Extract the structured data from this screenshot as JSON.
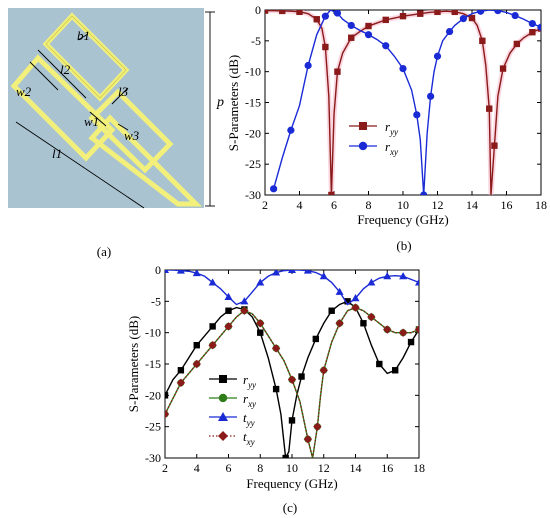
{
  "colors": {
    "background_panel": "#a9c3d1",
    "strip_yellow": "#f2f07a",
    "strip_edge": "#bfc04a",
    "dark_red": "#8b1a1a",
    "blue": "#1a2bd6",
    "green": "#2f7d1a",
    "pink_band": "#f6b6c8"
  },
  "panel_a": {
    "caption": "(a)",
    "labels": {
      "b1": "b1",
      "l2": "l2",
      "l3": "l3",
      "w2": "w2",
      "w1": "w1",
      "w3": "w3",
      "l1": "l1",
      "p": "p"
    }
  },
  "panel_b": {
    "caption": "(b)",
    "xlabel": "Frequency (GHz)",
    "ylabel": "S-Parameters (dB)",
    "xticks": [
      "2",
      "4",
      "6",
      "8",
      "10",
      "12",
      "14",
      "16",
      "18"
    ],
    "yticks": [
      "0",
      "-5",
      "-10",
      "-15",
      "-20",
      "-25",
      "-30"
    ],
    "legend": {
      "ryy": "r",
      "ryy_sub": "yy",
      "rxy": "r",
      "rxy_sub": "xy"
    }
  },
  "panel_c": {
    "caption": "(c)",
    "xlabel": "Frequency (GHz)",
    "ylabel": "S-Parameters (dB)",
    "xticks": [
      "2",
      "4",
      "6",
      "8",
      "10",
      "12",
      "14",
      "16",
      "18"
    ],
    "yticks": [
      "0",
      "-5",
      "-10",
      "-15",
      "-20",
      "-25",
      "-30"
    ],
    "legend": {
      "ryy": "r",
      "ryy_sub": "yy",
      "rxy": "r",
      "rxy_sub": "xy",
      "tyy": "t",
      "tyy_sub": "yy",
      "txy": "t",
      "txy_sub": "xy"
    }
  },
  "chart_data": [
    {
      "type": "line",
      "panel": "b",
      "xlim": [
        2,
        18
      ],
      "ylim": [
        -30,
        0
      ],
      "series": [
        {
          "name": "ryy",
          "color": "#8b1a1a",
          "marker": "square",
          "x": [
            2,
            2.5,
            3,
            3.5,
            4,
            4.5,
            5,
            5.3,
            5.5,
            5.7,
            5.85,
            6,
            6.2,
            6.5,
            7,
            7.5,
            8,
            8.5,
            9,
            9.5,
            10,
            10.5,
            11,
            11.5,
            12,
            12.5,
            13,
            13.5,
            14,
            14.3,
            14.6,
            14.8,
            15,
            15.1,
            15.3,
            15.5,
            15.8,
            16.2,
            16.6,
            17,
            17.5,
            18
          ],
          "y": [
            -0.1,
            -0.1,
            -0.15,
            -0.2,
            -0.3,
            -0.6,
            -1.5,
            -3,
            -6,
            -14,
            -30,
            -17,
            -10,
            -7,
            -4.5,
            -3.5,
            -2.6,
            -2.1,
            -1.6,
            -1.3,
            -1.0,
            -0.8,
            -0.6,
            -0.4,
            -0.3,
            -0.2,
            -0.3,
            -0.6,
            -1.3,
            -2.5,
            -5,
            -9,
            -16,
            -30,
            -22,
            -14,
            -9.5,
            -7,
            -5.5,
            -4.5,
            -3.6,
            -3
          ]
        },
        {
          "name": "rxy",
          "color": "#1a2bd6",
          "marker": "circle",
          "x": [
            2.5,
            3,
            3.5,
            4,
            4.5,
            5,
            5.5,
            5.8,
            6.2,
            6.5,
            7,
            7.5,
            8,
            8.5,
            9,
            9.5,
            10,
            10.5,
            10.8,
            11,
            11.2,
            11.4,
            11.6,
            11.8,
            12,
            12.3,
            12.7,
            13,
            13.5,
            14,
            14.5,
            15,
            15.5,
            16,
            16.5,
            17,
            17.5,
            18
          ],
          "y": [
            -29,
            -24,
            -19.5,
            -15.5,
            -9,
            -4,
            -1,
            0,
            -0.5,
            -1.5,
            -2.5,
            -3.3,
            -4,
            -4.8,
            -5.8,
            -7.5,
            -9.5,
            -13,
            -17,
            -21,
            -30,
            -20,
            -14,
            -10,
            -7.5,
            -5,
            -3.5,
            -2.5,
            -1.4,
            -0.6,
            -0.2,
            0,
            -0.1,
            -0.4,
            -0.9,
            -1.5,
            -2.2,
            -2.8
          ]
        }
      ]
    },
    {
      "type": "line",
      "panel": "c",
      "xlim": [
        2,
        18
      ],
      "ylim": [
        -30,
        0
      ],
      "series": [
        {
          "name": "ryy",
          "color": "#000000",
          "marker": "square",
          "x": [
            2,
            2.5,
            3,
            3.5,
            4,
            4.5,
            5,
            5.5,
            6,
            6.5,
            7,
            7.5,
            8,
            8.5,
            9,
            9.3,
            9.6,
            9.8,
            10,
            10.3,
            10.6,
            11,
            11.5,
            12,
            12.5,
            13,
            13.5,
            14,
            14.5,
            15,
            15.5,
            16,
            16.5,
            17,
            17.5,
            18
          ],
          "y": [
            -20,
            -17.5,
            -16,
            -14,
            -12,
            -10.5,
            -9,
            -7.5,
            -6.5,
            -6,
            -6.3,
            -7.5,
            -10,
            -14,
            -19,
            -23,
            -30,
            -29,
            -24,
            -20,
            -17,
            -14,
            -11,
            -8.5,
            -6.5,
            -5.5,
            -5,
            -6,
            -8.5,
            -12,
            -15,
            -16.5,
            -16,
            -14,
            -11.5,
            -9.5
          ]
        },
        {
          "name": "rxy",
          "color": "#2f7d1a",
          "marker": "circle",
          "x": [
            2,
            2.5,
            3,
            3.5,
            4,
            4.5,
            5,
            5.5,
            6,
            6.5,
            7,
            7.5,
            8,
            8.5,
            9,
            9.5,
            10,
            10.5,
            11,
            11.3,
            11.6,
            11.8,
            12,
            12.5,
            13,
            13.5,
            14,
            14.5,
            15,
            15.5,
            16,
            16.5,
            17,
            17.5,
            18
          ],
          "y": [
            -23,
            -20.5,
            -18,
            -16.5,
            -15,
            -13.5,
            -12,
            -10.5,
            -9,
            -7.5,
            -6.5,
            -7,
            -8.5,
            -10.5,
            -12.5,
            -14.5,
            -17.5,
            -21,
            -27,
            -30,
            -25,
            -20,
            -16,
            -11.5,
            -8.5,
            -6.5,
            -6,
            -6.5,
            -7.5,
            -8.5,
            -9.5,
            -10,
            -10,
            -10,
            -9.5
          ]
        },
        {
          "name": "tyy",
          "color": "#1a2bd6",
          "marker": "triangle",
          "x": [
            2,
            2.5,
            3,
            3.5,
            4,
            4.5,
            5,
            5.5,
            6,
            6.5,
            7,
            7.5,
            8,
            8.5,
            9,
            9.5,
            10,
            10.5,
            11,
            11.5,
            12,
            12.5,
            13,
            13.5,
            14,
            14.5,
            15,
            15.5,
            16,
            16.5,
            17,
            17.5,
            18
          ],
          "y": [
            0,
            0,
            -0.1,
            -0.2,
            -0.5,
            -1,
            -2,
            -3,
            -4.3,
            -5.5,
            -5,
            -3.5,
            -2,
            -1,
            -0.4,
            -0.1,
            0,
            0,
            -0.1,
            -0.4,
            -1,
            -2,
            -3.5,
            -5.5,
            -4.5,
            -3,
            -2,
            -1.3,
            -1,
            -0.9,
            -1,
            -1.5,
            -2
          ]
        },
        {
          "name": "txy",
          "color": "#8b1a1a",
          "marker": "diamond",
          "x": [
            2,
            2.5,
            3,
            3.5,
            4,
            4.5,
            5,
            5.5,
            6,
            6.5,
            7,
            7.5,
            8,
            8.5,
            9,
            9.5,
            10,
            10.5,
            11,
            11.3,
            11.6,
            11.8,
            12,
            12.5,
            13,
            13.5,
            14,
            14.5,
            15,
            15.5,
            16,
            16.5,
            17,
            17.5,
            18
          ],
          "y": [
            -23,
            -20.5,
            -18,
            -16.5,
            -15,
            -13.5,
            -12,
            -10.5,
            -9,
            -7.5,
            -6.5,
            -7,
            -8.5,
            -10.5,
            -12.5,
            -14.5,
            -17.5,
            -21,
            -27,
            -30,
            -25,
            -20,
            -16,
            -11.5,
            -8.5,
            -6.5,
            -6,
            -6.5,
            -7.5,
            -8.5,
            -9.5,
            -10,
            -10,
            -10,
            -9.5
          ]
        }
      ]
    }
  ]
}
